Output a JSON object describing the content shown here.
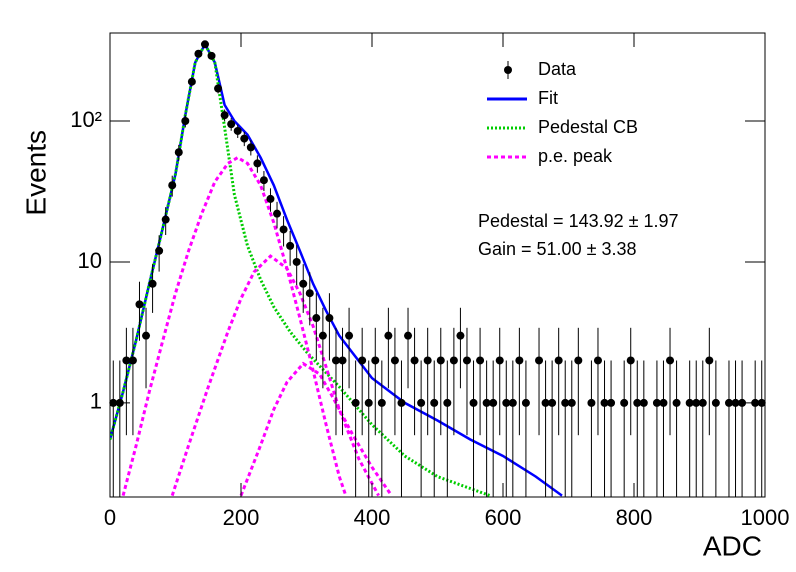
{
  "chart_data": {
    "type": "histfit",
    "xlabel": "ADC",
    "ylabel": "Events",
    "xlim": [
      0,
      1000
    ],
    "ylim": [
      0.215,
      421
    ],
    "log_y": true,
    "xticks": [
      0,
      200,
      400,
      600,
      800,
      1000
    ],
    "yticks": [
      1,
      10,
      {
        "value": 100,
        "label": "10²"
      }
    ],
    "legend": "top-right",
    "annotations": [
      "Pedestal = 143.92 ± 1.97",
      "Gain = 51.00 ± 3.38"
    ],
    "data": {
      "name": "Data",
      "color": "#000000",
      "x": [
        5,
        15,
        25,
        35,
        45,
        55,
        65,
        75,
        85,
        95,
        105,
        115,
        125,
        135,
        145,
        155,
        165,
        175,
        185,
        195,
        205,
        215,
        225,
        235,
        245,
        255,
        265,
        275,
        285,
        295,
        305,
        315,
        325,
        335,
        345,
        355,
        365,
        375,
        385,
        395,
        405,
        415,
        425,
        435,
        445,
        455,
        465,
        475,
        485,
        495,
        505,
        515,
        525,
        535,
        545,
        555,
        565,
        575,
        585,
        595,
        605,
        615,
        625,
        635,
        645,
        655,
        665,
        675,
        685,
        695,
        705,
        715,
        725,
        735,
        745,
        755,
        765,
        775,
        785,
        795,
        805,
        815,
        825,
        835,
        845,
        855,
        865,
        875,
        885,
        895,
        905,
        915,
        925,
        935,
        945,
        955,
        965,
        975,
        985,
        995
      ],
      "values": [
        1,
        1,
        2,
        2,
        5,
        3,
        7,
        12,
        20,
        35,
        60,
        100,
        190,
        300,
        350,
        290,
        170,
        110,
        95,
        85,
        75,
        65,
        50,
        38,
        28,
        22,
        17,
        13,
        10,
        7,
        6,
        4,
        3,
        4,
        2,
        2,
        3,
        1,
        2,
        1,
        2,
        1,
        3,
        2,
        1,
        3,
        2,
        1,
        2,
        1,
        2,
        1,
        2,
        3,
        2,
        1,
        2,
        1,
        1,
        2,
        1,
        1,
        2,
        1,
        null,
        2,
        1,
        1,
        2,
        1,
        1,
        2,
        null,
        1,
        2,
        1,
        1,
        null,
        1,
        2,
        1,
        1,
        null,
        1,
        1,
        2,
        1,
        null,
        1,
        1,
        1,
        2,
        1,
        null,
        1,
        1,
        1,
        null,
        1,
        1
      ],
      "errors": [
        1,
        1,
        1.41,
        1.41,
        2.24,
        1.73,
        2.65,
        3.46,
        4.47,
        5.92,
        7.75,
        10,
        13.78,
        17.32,
        18.71,
        17.03,
        13.04,
        10.49,
        9.75,
        9.22,
        8.66,
        8.06,
        7.07,
        6.16,
        5.29,
        4.69,
        4.12,
        3.61,
        3.16,
        2.65,
        2.45,
        2,
        1.73,
        2,
        1.41,
        1.41,
        1.73,
        1,
        1.41,
        1,
        1.41,
        1,
        1.73,
        1.41,
        1,
        1.73,
        1.41,
        1,
        1.41,
        1,
        1.41,
        1,
        1.41,
        1.73,
        1.41,
        1,
        1.41,
        1,
        1,
        1.41,
        1,
        1,
        1.41,
        1,
        null,
        1.41,
        1,
        1,
        1.41,
        1,
        1,
        1.41,
        null,
        1,
        1.41,
        1,
        1,
        null,
        1,
        1.41,
        1,
        1,
        null,
        1,
        1,
        1.41,
        1,
        null,
        1,
        1,
        1,
        1.41,
        1,
        null,
        1,
        1,
        1,
        null,
        1,
        1
      ]
    },
    "series": [
      {
        "name": "Fit",
        "color": "#0000ff",
        "style": "solid",
        "segments": [
          {
            "x": [
              0,
              20,
              40,
              60,
              80,
              100,
              115,
              130,
              145,
              160,
              175,
              190,
              210,
              230,
              250,
              270,
              290,
              310,
              330,
              350,
              400,
              450,
              500,
              550,
              600,
              650,
              690
            ],
            "values": [
              0.55,
              1.2,
              2.8,
              7,
              17,
              42,
              110,
              260,
              350,
              260,
              130,
              100,
              80,
              55,
              35,
              20,
              12,
              7,
              4.5,
              3,
              1.5,
              1,
              0.75,
              0.55,
              0.42,
              0.3,
              0.22
            ]
          }
        ]
      },
      {
        "name": "Pedestal CB",
        "color": "#00cc00",
        "style": "dotted",
        "segments": [
          {
            "x": [
              0,
              20,
              40,
              60,
              80,
              100,
              115,
              130,
              145,
              160,
              175,
              190,
              210,
              230,
              250,
              275,
              300,
              350,
              400,
              450,
              500,
              580
            ],
            "values": [
              0.55,
              1.2,
              2.8,
              7,
              17,
              42,
              110,
              260,
              350,
              260,
              90,
              30,
              13,
              7.5,
              4.8,
              3.2,
              2.3,
              1.3,
              0.7,
              0.42,
              0.3,
              0.22
            ]
          }
        ]
      },
      {
        "name": "p.e. peak",
        "color": "#ff00ff",
        "style": "dashed",
        "segments": [
          {
            "x": [
              20,
              40,
              60,
              80,
              100,
              120,
              140,
              160,
              180,
              195,
              210,
              230,
              250,
              270,
              290,
              310,
              330,
              350,
              360
            ],
            "values": [
              0.22,
              0.5,
              1.2,
              2.7,
              6,
              12,
              22,
              37,
              50,
              55,
              50,
              35,
              19,
              9,
              4,
              1.7,
              0.7,
              0.3,
              0.22
            ]
          },
          {
            "x": [
              95,
              120,
              150,
              180,
              200,
              220,
              245,
              270,
              290,
              310,
              330,
              350,
              380,
              410
            ],
            "values": [
              0.22,
              0.5,
              1.3,
              3.2,
              5.5,
              8.5,
              11,
              9,
              6,
              3.5,
              1.8,
              0.9,
              0.4,
              0.22
            ]
          },
          {
            "x": [
              200,
              230,
              250,
              270,
              295,
              320,
              340,
              370,
              400,
              430
            ],
            "values": [
              0.22,
              0.5,
              0.9,
              1.4,
              1.9,
              1.6,
              1.1,
              0.6,
              0.35,
              0.22
            ]
          }
        ]
      }
    ]
  }
}
